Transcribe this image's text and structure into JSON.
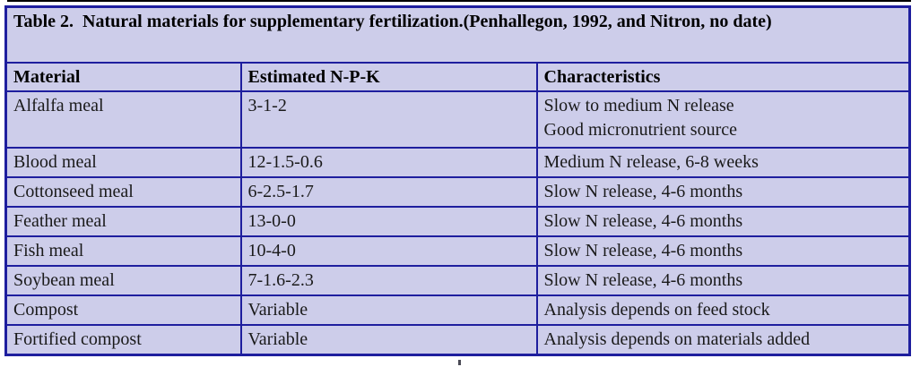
{
  "colors": {
    "table_background": "#cdcdea",
    "border": "#1e1e9e",
    "text": "#1a1a1a",
    "top_rule": "#000000"
  },
  "table": {
    "title": "Table 2.  Natural materials for supplementary fertilization.(Penhallegon, 1992, and Nitron, no date)",
    "columns": [
      "Material",
      "Estimated N-P-K",
      "Characteristics"
    ],
    "rows": [
      {
        "material": "Alfalfa meal",
        "npk": "3-1-2",
        "characteristics": [
          "Slow to medium N release",
          "Good micronutrient source"
        ]
      },
      {
        "material": "Blood meal",
        "npk": "12-1.5-0.6",
        "characteristics": [
          "Medium N release, 6-8 weeks"
        ]
      },
      {
        "material": "Cottonseed meal",
        "npk": "6-2.5-1.7",
        "characteristics": [
          "Slow N release, 4-6 months"
        ]
      },
      {
        "material": "Feather meal",
        "npk": "13-0-0",
        "characteristics": [
          "Slow N release, 4-6 months"
        ]
      },
      {
        "material": "Fish meal",
        "npk": "10-4-0",
        "characteristics": [
          "Slow N release, 4-6 months"
        ]
      },
      {
        "material": "Soybean meal",
        "npk": "7-1.6-2.3",
        "characteristics": [
          "Slow N release, 4-6 months"
        ]
      },
      {
        "material": "Compost",
        "npk": "Variable",
        "characteristics": [
          "Analysis depends on feed stock"
        ]
      },
      {
        "material": "Fortified compost",
        "npk": "Variable",
        "characteristics": [
          "Analysis depends on materials added"
        ]
      }
    ]
  }
}
